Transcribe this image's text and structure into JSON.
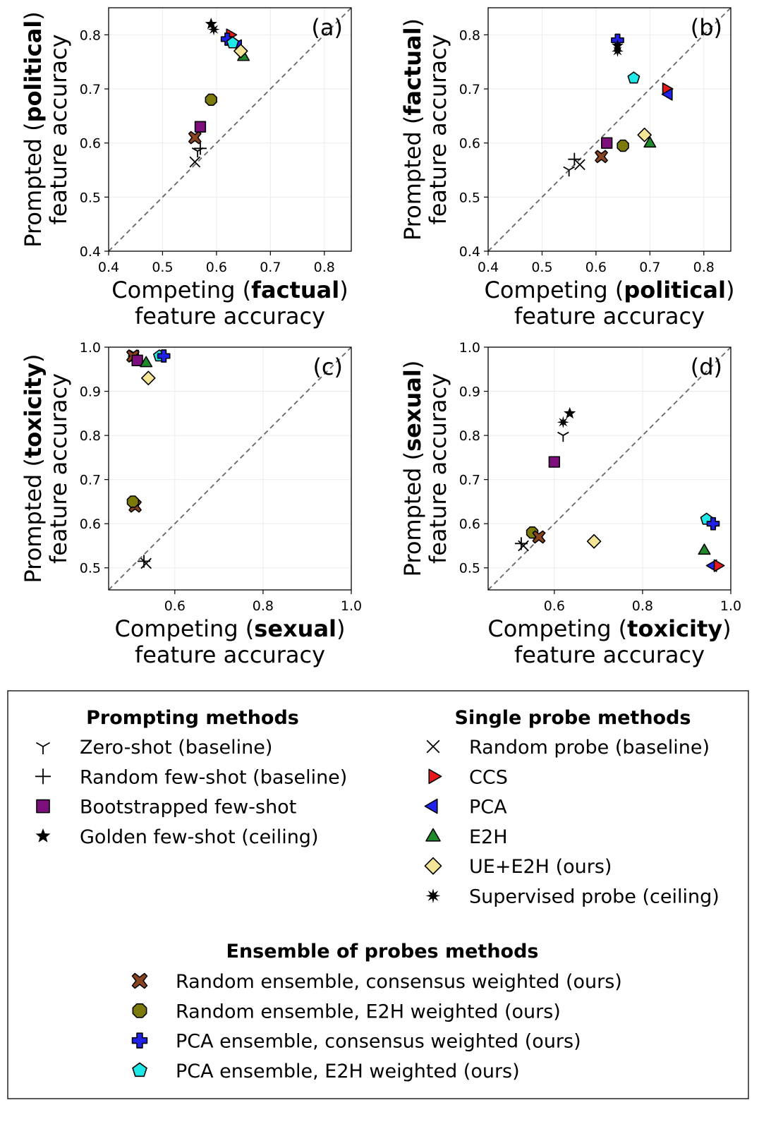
{
  "colors": {
    "ccs": "#e8191b",
    "pca": "#2222ee",
    "e2h": "#1f8a2a",
    "ue_e2h": "#f4e496",
    "bootstrapped": "#7d0f7d",
    "rand_cons": "#8b4420",
    "rand_e2h": "#7d7a0c",
    "pca_cons": "#2020e6",
    "pca_e2h": "#1ee8e8",
    "black": "#000000"
  },
  "chart_data": [
    {
      "type": "scatter",
      "panel": "(a)",
      "xlim": [
        0.4,
        0.85
      ],
      "ylim": [
        0.4,
        0.85
      ],
      "xticks": [
        "0.4",
        "0.5",
        "0.6",
        "0.7",
        "0.8"
      ],
      "yticks": [
        "0.4",
        "0.5",
        "0.6",
        "0.7",
        "0.8"
      ],
      "ylabel_pre": "Prompted (",
      "ylabel_bold": "political",
      "ylabel_post": ")",
      "ylabel_line2": "feature accuracy",
      "xlabel_pre": "Competing (",
      "xlabel_bold": "factual",
      "xlabel_post": ")",
      "xlabel_line2": "feature accuracy",
      "points": [
        {
          "method": "Zero-shot (baseline)",
          "marker": "tri",
          "x": 0.565,
          "y": 0.585
        },
        {
          "method": "Random few-shot (baseline)",
          "marker": "plus",
          "x": 0.57,
          "y": 0.59
        },
        {
          "method": "Random probe (baseline)",
          "marker": "x",
          "x": 0.56,
          "y": 0.565
        },
        {
          "method": "Random ensemble, consensus weighted (ours)",
          "marker": "xfill",
          "x": 0.56,
          "y": 0.61
        },
        {
          "method": "Bootstrapped few-shot",
          "marker": "square",
          "x": 0.57,
          "y": 0.63
        },
        {
          "method": "Random ensemble, E2H weighted (ours)",
          "marker": "oct",
          "x": 0.59,
          "y": 0.68
        },
        {
          "method": "Golden few-shot (ceiling)",
          "marker": "star5",
          "x": 0.59,
          "y": 0.82
        },
        {
          "method": "Supervised probe (ceiling)",
          "marker": "star8",
          "x": 0.595,
          "y": 0.81
        },
        {
          "method": "CCS",
          "marker": "tri_r",
          "x": 0.625,
          "y": 0.8
        },
        {
          "method": "PCA",
          "marker": "tri_l",
          "x": 0.64,
          "y": 0.78
        },
        {
          "method": "PCA ensemble, consensus weighted (ours)",
          "marker": "cross",
          "x": 0.62,
          "y": 0.792
        },
        {
          "method": "PCA ensemble, E2H weighted (ours)",
          "marker": "pent",
          "x": 0.63,
          "y": 0.785
        },
        {
          "method": "E2H",
          "marker": "tri_u",
          "x": 0.65,
          "y": 0.76
        },
        {
          "method": "UE+E2H (ours)",
          "marker": "diamond",
          "x": 0.645,
          "y": 0.77
        }
      ]
    },
    {
      "type": "scatter",
      "panel": "(b)",
      "xlim": [
        0.4,
        0.85
      ],
      "ylim": [
        0.4,
        0.85
      ],
      "xticks": [
        "0.4",
        "0.5",
        "0.6",
        "0.7",
        "0.8"
      ],
      "yticks": [
        "0.4",
        "0.5",
        "0.6",
        "0.7",
        "0.8"
      ],
      "ylabel_pre": "Prompted (",
      "ylabel_bold": "factual",
      "ylabel_post": ")",
      "ylabel_line2": "feature accuracy",
      "xlabel_pre": "Competing (",
      "xlabel_bold": "political",
      "xlabel_post": ")",
      "xlabel_line2": "feature accuracy",
      "points": [
        {
          "method": "Zero-shot (baseline)",
          "marker": "tri",
          "x": 0.55,
          "y": 0.55
        },
        {
          "method": "Random few-shot (baseline)",
          "marker": "plus",
          "x": 0.56,
          "y": 0.57
        },
        {
          "method": "Random probe (baseline)",
          "marker": "x",
          "x": 0.57,
          "y": 0.56
        },
        {
          "method": "Random ensemble, consensus weighted (ours)",
          "marker": "xfill",
          "x": 0.61,
          "y": 0.575
        },
        {
          "method": "Bootstrapped few-shot",
          "marker": "square",
          "x": 0.62,
          "y": 0.6
        },
        {
          "method": "Random ensemble, E2H weighted (ours)",
          "marker": "oct",
          "x": 0.65,
          "y": 0.595
        },
        {
          "method": "UE+E2H (ours)",
          "marker": "diamond",
          "x": 0.69,
          "y": 0.615
        },
        {
          "method": "E2H",
          "marker": "tri_u",
          "x": 0.7,
          "y": 0.6
        },
        {
          "method": "CCS",
          "marker": "tri_r",
          "x": 0.73,
          "y": 0.7
        },
        {
          "method": "PCA",
          "marker": "tri_l",
          "x": 0.735,
          "y": 0.69
        },
        {
          "method": "PCA ensemble, E2H weighted (ours)",
          "marker": "pent",
          "x": 0.67,
          "y": 0.72
        },
        {
          "method": "PCA ensemble, consensus weighted (ours)",
          "marker": "cross",
          "x": 0.64,
          "y": 0.79
        },
        {
          "method": "Golden few-shot (ceiling)",
          "marker": "star5",
          "x": 0.64,
          "y": 0.78
        },
        {
          "method": "Supervised probe (ceiling)",
          "marker": "star8",
          "x": 0.64,
          "y": 0.77
        }
      ]
    },
    {
      "type": "scatter",
      "panel": "(c)",
      "xlim": [
        0.45,
        1.0
      ],
      "ylim": [
        0.45,
        1.0
      ],
      "xticks": [
        "0.6",
        "0.8",
        "1.0"
      ],
      "yticks": [
        "0.5",
        "0.6",
        "0.7",
        "0.8",
        "0.9",
        "1.0"
      ],
      "ylabel_pre": "Prompted (",
      "ylabel_bold": "toxicity",
      "ylabel_post": ")",
      "ylabel_line2": "feature accuracy",
      "xlabel_pre": "Competing (",
      "xlabel_bold": "sexual",
      "xlabel_post": ")",
      "xlabel_line2": "feature accuracy",
      "points": [
        {
          "method": "Random probe (baseline)",
          "marker": "x",
          "x": 0.535,
          "y": 0.51
        },
        {
          "method": "Random few-shot (baseline)",
          "marker": "plus",
          "x": 0.53,
          "y": 0.515
        },
        {
          "method": "Random ensemble, consensus weighted (ours)",
          "marker": "xfill",
          "x": 0.51,
          "y": 0.64
        },
        {
          "method": "Random ensemble, E2H weighted (ours)",
          "marker": "oct",
          "x": 0.505,
          "y": 0.65
        },
        {
          "method": "CCS",
          "marker": "tri_r",
          "x": 0.505,
          "y": 0.98
        },
        {
          "method": "PCA",
          "marker": "tri_l",
          "x": 0.51,
          "y": 0.98
        },
        {
          "method": "Random ensemble, consensus weighted (ours)",
          "marker": "xfill",
          "x": 0.505,
          "y": 0.98
        },
        {
          "method": "Bootstrapped few-shot",
          "marker": "square",
          "x": 0.515,
          "y": 0.97
        },
        {
          "method": "E2H",
          "marker": "tri_u",
          "x": 0.535,
          "y": 0.965
        },
        {
          "method": "UE+E2H (ours)",
          "marker": "diamond",
          "x": 0.54,
          "y": 0.93
        },
        {
          "method": "PCA ensemble, E2H weighted (ours)",
          "marker": "pent",
          "x": 0.565,
          "y": 0.98
        },
        {
          "method": "PCA ensemble, consensus weighted (ours)",
          "marker": "cross",
          "x": 0.575,
          "y": 0.98
        }
      ]
    },
    {
      "type": "scatter",
      "panel": "(d)",
      "xlim": [
        0.45,
        1.0
      ],
      "ylim": [
        0.45,
        1.0
      ],
      "xticks": [
        "0.6",
        "0.8",
        "1.0"
      ],
      "yticks": [
        "0.5",
        "0.6",
        "0.7",
        "0.8",
        "0.9",
        "1.0"
      ],
      "ylabel_pre": "Prompted (",
      "ylabel_bold": "sexual",
      "ylabel_post": ")",
      "ylabel_line2": "feature accuracy",
      "xlabel_pre": "Competing (",
      "xlabel_bold": "toxicity",
      "xlabel_post": ")",
      "xlabel_line2": "feature accuracy",
      "points": [
        {
          "method": "Random few-shot (baseline)",
          "marker": "plus",
          "x": 0.525,
          "y": 0.555
        },
        {
          "method": "Random probe (baseline)",
          "marker": "x",
          "x": 0.53,
          "y": 0.55
        },
        {
          "method": "Random ensemble, E2H weighted (ours)",
          "marker": "oct",
          "x": 0.55,
          "y": 0.58
        },
        {
          "method": "Random ensemble, consensus weighted (ours)",
          "marker": "xfill",
          "x": 0.565,
          "y": 0.57
        },
        {
          "method": "Bootstrapped few-shot",
          "marker": "square",
          "x": 0.6,
          "y": 0.74
        },
        {
          "method": "Zero-shot (baseline)",
          "marker": "tri",
          "x": 0.62,
          "y": 0.8
        },
        {
          "method": "Supervised probe (ceiling)",
          "marker": "star8",
          "x": 0.62,
          "y": 0.83
        },
        {
          "method": "Golden few-shot (ceiling)",
          "marker": "star5",
          "x": 0.635,
          "y": 0.85
        },
        {
          "method": "UE+E2H (ours)",
          "marker": "diamond",
          "x": 0.69,
          "y": 0.56
        },
        {
          "method": "E2H",
          "marker": "tri_u",
          "x": 0.94,
          "y": 0.54
        },
        {
          "method": "PCA ensemble, E2H weighted (ours)",
          "marker": "pent",
          "x": 0.945,
          "y": 0.61
        },
        {
          "method": "PCA ensemble, consensus weighted (ours)",
          "marker": "cross",
          "x": 0.96,
          "y": 0.6
        },
        {
          "method": "PCA",
          "marker": "tri_l",
          "x": 0.96,
          "y": 0.505
        },
        {
          "method": "CCS",
          "marker": "tri_r",
          "x": 0.97,
          "y": 0.505
        }
      ]
    }
  ],
  "legend": {
    "prompting_title": "Prompting methods",
    "single_title": "Single probe methods",
    "ensemble_title": "Ensemble of probes methods",
    "prompting": [
      {
        "marker": "tri",
        "label": "Zero-shot (baseline)"
      },
      {
        "marker": "plus",
        "label": "Random few-shot (baseline)"
      },
      {
        "marker": "square",
        "label": "Bootstrapped few-shot"
      },
      {
        "marker": "star5",
        "label": "Golden few-shot (ceiling)"
      }
    ],
    "single": [
      {
        "marker": "x",
        "label": "Random probe (baseline)"
      },
      {
        "marker": "tri_r",
        "label": "CCS"
      },
      {
        "marker": "tri_l",
        "label": "PCA"
      },
      {
        "marker": "tri_u",
        "label": "E2H"
      },
      {
        "marker": "diamond",
        "label": "UE+E2H (ours)"
      },
      {
        "marker": "star8",
        "label": "Supervised probe (ceiling)"
      }
    ],
    "ensemble": [
      {
        "marker": "xfill",
        "label": "Random ensemble, consensus weighted (ours)"
      },
      {
        "marker": "oct",
        "label": "Random ensemble, E2H weighted (ours)"
      },
      {
        "marker": "cross",
        "label": "PCA ensemble, consensus weighted (ours)"
      },
      {
        "marker": "pent",
        "label": "PCA ensemble, E2H weighted (ours)"
      }
    ]
  }
}
